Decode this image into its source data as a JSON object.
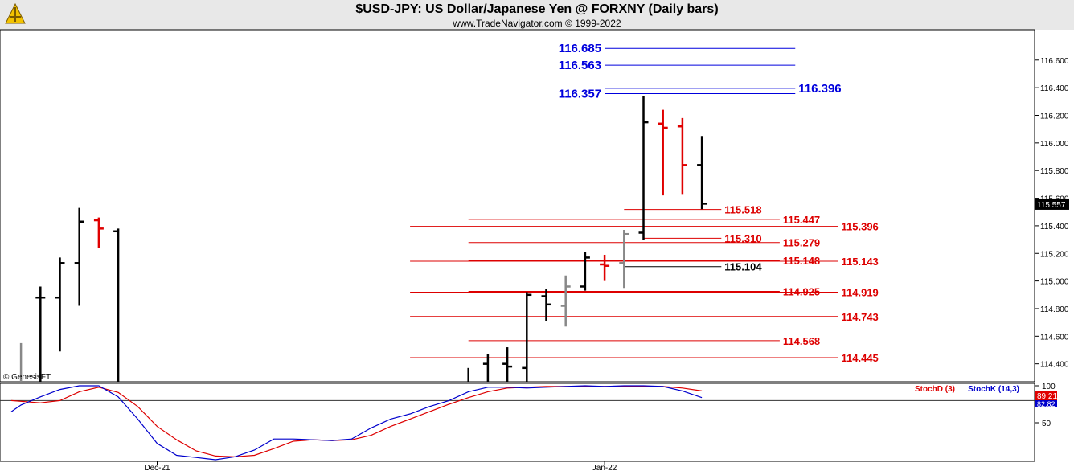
{
  "header": {
    "title": "$USD-JPY:  US Dollar/Japanese Yen @ FORXNY  (Daily bars)",
    "subtitle": "www.TradeNavigator.com © 1999-2022",
    "watermark": "© GenesisFT"
  },
  "colors": {
    "up_bar": "#000000",
    "down_bar": "#e00000",
    "neutral_bar": "#888888",
    "blue_level": "#0000dd",
    "red_level": "#dd0000",
    "stoch_d": "#dd0000",
    "stoch_k": "#0000cc"
  },
  "chart_data": [
    {
      "type": "ohlc",
      "title": "$USD-JPY:  US Dollar/Japanese Yen @ FORXNY  (Daily bars)",
      "ylim": [
        114.27,
        116.82
      ],
      "y_ticks": [
        "114.400",
        "114.600",
        "114.800",
        "115.000",
        "115.200",
        "115.400",
        "115.600",
        "115.800",
        "116.000",
        "116.200",
        "116.400",
        "116.600"
      ],
      "x_ticks": [
        {
          "label": "Dec-21",
          "at": 8
        },
        {
          "label": "Jan-22",
          "at": 31
        }
      ],
      "x_range": [
        -0.5,
        42
      ],
      "last_price": "115.557",
      "bars": [
        {
          "i": 1,
          "h": 114.55,
          "l": 114.27,
          "o": null,
          "c": null,
          "color": "neutral"
        },
        {
          "i": 2,
          "h": 114.96,
          "l": 114.27,
          "o": 114.88,
          "c": 114.88,
          "color": "up"
        },
        {
          "i": 3,
          "h": 115.17,
          "l": 114.49,
          "o": 114.88,
          "c": 115.13,
          "color": "up"
        },
        {
          "i": 4,
          "h": 115.53,
          "l": 114.82,
          "o": 115.13,
          "c": 115.43,
          "color": "up"
        },
        {
          "i": 5,
          "h": 115.46,
          "l": 115.24,
          "o": 115.44,
          "c": 115.38,
          "color": "down"
        },
        {
          "i": 6,
          "h": 115.38,
          "l": 114.27,
          "o": 115.36,
          "c": null,
          "color": "up"
        },
        {
          "i": 24,
          "h": 114.37,
          "l": 114.27,
          "o": null,
          "c": null,
          "color": "up"
        },
        {
          "i": 25,
          "h": 114.47,
          "l": 114.27,
          "o": 114.4,
          "c": null,
          "color": "up"
        },
        {
          "i": 26,
          "h": 114.52,
          "l": 114.27,
          "o": 114.4,
          "c": 114.38,
          "color": "up"
        },
        {
          "i": 27,
          "h": 114.92,
          "l": 114.27,
          "o": 114.37,
          "c": 114.9,
          "color": "up"
        },
        {
          "i": 28,
          "h": 114.94,
          "l": 114.71,
          "o": 114.89,
          "c": 114.83,
          "color": "up"
        },
        {
          "i": 29,
          "h": 115.04,
          "l": 114.67,
          "o": 114.82,
          "c": 114.96,
          "color": "neutral"
        },
        {
          "i": 30,
          "h": 115.21,
          "l": 114.93,
          "o": 114.96,
          "c": 115.17,
          "color": "up"
        },
        {
          "i": 31,
          "h": 115.19,
          "l": 115.0,
          "o": 115.12,
          "c": 115.11,
          "color": "down"
        },
        {
          "i": 32,
          "h": 115.37,
          "l": 114.95,
          "o": 115.13,
          "c": 115.34,
          "color": "neutral"
        },
        {
          "i": 33,
          "h": 116.34,
          "l": 115.3,
          "o": 115.35,
          "c": 116.15,
          "color": "up"
        },
        {
          "i": 34,
          "h": 116.24,
          "l": 115.62,
          "o": 116.14,
          "c": 116.11,
          "color": "down"
        },
        {
          "i": 35,
          "h": 116.18,
          "l": 115.63,
          "o": 116.12,
          "c": 115.84,
          "color": "down"
        },
        {
          "i": 36,
          "h": 116.05,
          "l": 115.52,
          "o": 115.84,
          "c": 115.56,
          "color": "up"
        }
      ],
      "levels": [
        {
          "label": "116.685",
          "price": 116.685,
          "color": "blue",
          "x0": 31.0,
          "x1": 40.8,
          "label_side": "left"
        },
        {
          "label": "116.563",
          "price": 116.563,
          "color": "blue",
          "x0": 31.0,
          "x1": 40.8,
          "label_side": "left"
        },
        {
          "label": "116.357",
          "price": 116.357,
          "color": "blue",
          "x0": 31.0,
          "x1": 40.8,
          "label_side": "left"
        },
        {
          "label": "116.396",
          "price": 116.396,
          "color": "blue",
          "x0": 31.0,
          "x1": 40.8,
          "label_side": "right"
        },
        {
          "label": "115.518",
          "price": 115.518,
          "color": "red",
          "x0": 32.0,
          "x1": 37.0,
          "label_side": "right"
        },
        {
          "label": "115.447",
          "price": 115.447,
          "color": "red",
          "x0": 24.0,
          "x1": 40.0,
          "label_side": "right"
        },
        {
          "label": "115.396",
          "price": 115.396,
          "color": "red",
          "x0": 21.0,
          "x1": 43.0,
          "label_side": "right"
        },
        {
          "label": "115.310",
          "price": 115.31,
          "color": "red",
          "x0": 33.0,
          "x1": 37.0,
          "label_side": "right"
        },
        {
          "label": "115.279",
          "price": 115.279,
          "color": "red",
          "x0": 24.0,
          "x1": 40.0,
          "label_side": "right"
        },
        {
          "label": "115.148",
          "price": 115.148,
          "color": "red",
          "x0": 24.0,
          "x1": 40.0,
          "label_side": "right"
        },
        {
          "label": "115.143",
          "price": 115.143,
          "color": "red",
          "x0": 21.0,
          "x1": 43.0,
          "label_side": "right"
        },
        {
          "label": "115.104",
          "price": 115.104,
          "color": "black",
          "x0": 32.0,
          "x1": 37.0,
          "label_side": "right"
        },
        {
          "label": "114.925",
          "price": 114.925,
          "color": "red",
          "x0": 24.0,
          "x1": 40.0,
          "label_side": "right"
        },
        {
          "label": "114.919",
          "price": 114.919,
          "color": "red",
          "x0": 21.0,
          "x1": 43.0,
          "label_side": "right"
        },
        {
          "label": "114.743",
          "price": 114.743,
          "color": "red",
          "x0": 21.0,
          "x1": 43.0,
          "label_side": "right"
        },
        {
          "label": "114.568",
          "price": 114.568,
          "color": "red",
          "x0": 24.0,
          "x1": 40.0,
          "label_side": "right"
        },
        {
          "label": "114.445",
          "price": 114.445,
          "color": "red",
          "x0": 21.0,
          "x1": 43.0,
          "label_side": "right"
        }
      ]
    },
    {
      "type": "line",
      "ylim": [
        0,
        100
      ],
      "y_ticks": [
        "100",
        "50"
      ],
      "reference_line": 80,
      "last_values": [
        "89.21",
        "82.82"
      ],
      "series": [
        {
          "name": "StochD (3)",
          "color": "red",
          "points": [
            [
              0.5,
              80
            ],
            [
              2,
              77
            ],
            [
              3,
              80
            ],
            [
              4,
              92
            ],
            [
              5,
              98
            ],
            [
              6,
              91
            ],
            [
              7,
              72
            ],
            [
              8,
              45
            ],
            [
              9,
              27
            ],
            [
              10,
              12
            ],
            [
              11,
              5
            ],
            [
              12,
              4
            ],
            [
              13,
              6
            ],
            [
              14,
              15
            ],
            [
              15,
              25
            ],
            [
              16,
              27
            ],
            [
              17,
              26
            ],
            [
              18,
              27
            ],
            [
              19,
              33
            ],
            [
              20,
              45
            ],
            [
              21,
              55
            ],
            [
              22,
              65
            ],
            [
              23,
              75
            ],
            [
              24,
              84
            ],
            [
              25,
              92
            ],
            [
              26,
              97
            ],
            [
              27,
              98
            ],
            [
              28,
              99
            ],
            [
              29,
              99
            ],
            [
              30,
              99
            ],
            [
              31,
              99
            ],
            [
              32,
              99
            ],
            [
              33,
              99
            ],
            [
              34,
              99
            ],
            [
              35,
              97
            ],
            [
              36,
              93
            ]
          ]
        },
        {
          "name": "StochK (14,3)",
          "color": "blue",
          "points": [
            [
              0.5,
              65
            ],
            [
              1,
              74
            ],
            [
              2,
              85
            ],
            [
              3,
              95
            ],
            [
              4,
              103
            ],
            [
              5,
              103
            ],
            [
              6,
              85
            ],
            [
              7,
              55
            ],
            [
              8,
              22
            ],
            [
              9,
              6
            ],
            [
              10,
              3
            ],
            [
              11,
              0
            ],
            [
              12,
              4
            ],
            [
              13,
              13
            ],
            [
              14,
              28
            ],
            [
              15,
              28
            ],
            [
              16,
              27
            ],
            [
              17,
              26
            ],
            [
              18,
              28
            ],
            [
              19,
              43
            ],
            [
              20,
              55
            ],
            [
              21,
              62
            ],
            [
              22,
              72
            ],
            [
              23,
              80
            ],
            [
              24,
              92
            ],
            [
              25,
              98
            ],
            [
              26,
              98
            ],
            [
              27,
              97
            ],
            [
              28,
              98
            ],
            [
              29,
              99
            ],
            [
              30,
              100
            ],
            [
              31,
              99
            ],
            [
              32,
              100
            ],
            [
              33,
              100
            ],
            [
              34,
              99
            ],
            [
              35,
              93
            ],
            [
              36,
              84
            ]
          ]
        }
      ]
    }
  ]
}
